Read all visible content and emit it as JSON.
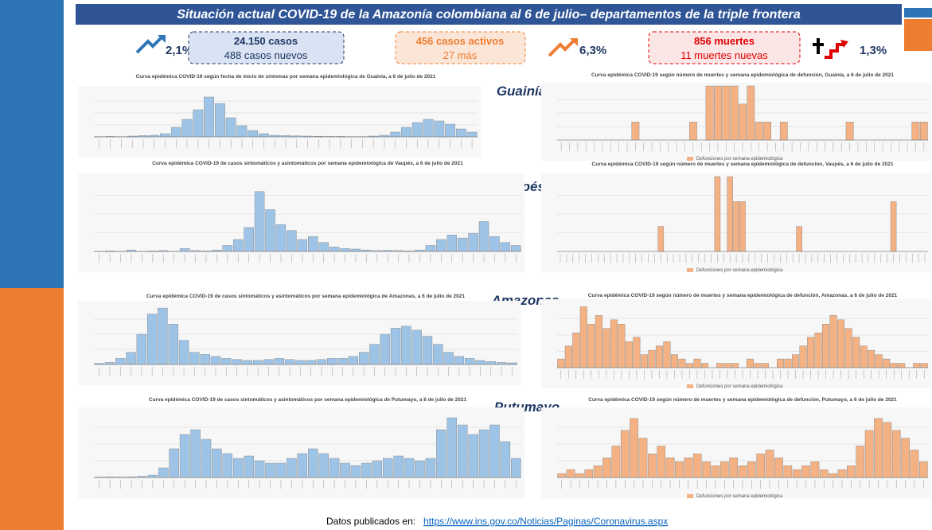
{
  "header": {
    "title": "Situación actual COVID-19 de la Amazonía colombiana al 6 de julio– departamentos de la triple frontera"
  },
  "stats": {
    "cases_change": "2,1%",
    "cases": "24.150 casos",
    "new_cases": "488 casos nuevos",
    "active_cases": "456 casos activos",
    "active_more": "27 más",
    "active_change": "6,3%",
    "deaths": "856 muertes",
    "new_deaths": "11 muertes nuevas",
    "deaths_change": "1,3%"
  },
  "departments": [
    "Guainía",
    "Vaupés",
    "Amazonas",
    "Putumayo"
  ],
  "chart_data": [
    {
      "type": "bar",
      "title": "Curva epidémica COVID-19 según fecha de inicio de síntomas por semana epidemiológica de Guainía, a 6 de julio de 2021",
      "ylim": [
        0,
        300
      ],
      "color": "#9dc3e6",
      "values": [
        2,
        3,
        2,
        5,
        8,
        10,
        20,
        60,
        110,
        170,
        250,
        210,
        120,
        70,
        40,
        20,
        10,
        8,
        6,
        5,
        4,
        3,
        3,
        2,
        2,
        5,
        10,
        30,
        60,
        90,
        110,
        100,
        80,
        50,
        30
      ]
    },
    {
      "type": "bar",
      "title": "Curva epidémica COVID-19 según número de muertes y semana epidemiológica de defunción, Guainía, a 6 de julio de 2021",
      "ylim": [
        0,
        3
      ],
      "series": [
        {
          "name": "Defunciones por semana epidemiológica",
          "color": "#f4b183",
          "values": [
            0,
            0,
            0,
            0,
            0,
            0,
            0,
            0,
            0,
            1,
            0,
            0,
            0,
            0,
            0,
            0,
            1,
            0,
            3,
            3,
            3,
            3,
            2,
            3,
            1,
            1,
            0,
            1,
            0,
            0,
            0,
            0,
            0,
            0,
            0,
            1,
            0,
            0,
            0,
            0,
            0,
            0,
            0,
            1,
            1
          ]
        }
      ]
    },
    {
      "type": "bar",
      "title": "Curva epidémica COVID-19 de casos sintomáticos y asintomáticos por semana epidemiológica de Vaupés, a 6 de julio de 2021",
      "ylim": [
        0,
        250
      ],
      "color": "#9dc3e6",
      "values": [
        1,
        2,
        1,
        5,
        1,
        2,
        3,
        1,
        10,
        3,
        2,
        5,
        20,
        40,
        80,
        200,
        140,
        90,
        70,
        40,
        50,
        30,
        15,
        10,
        8,
        5,
        3,
        4,
        3,
        2,
        5,
        20,
        40,
        55,
        45,
        60,
        100,
        50,
        30,
        20
      ]
    },
    {
      "type": "bar",
      "title": "Curva epidémica COVID-19 según número de muertes y semana epidemiológica de defunción, Vaupés, a 6 de julio de 2021",
      "ylim": [
        0,
        3
      ],
      "series": [
        {
          "name": "Defunciones por semana epidemiológica",
          "color": "#f4b183",
          "values": [
            0,
            0,
            0,
            0,
            0,
            0,
            0,
            0,
            0,
            0,
            0,
            0,
            0,
            0,
            0,
            0,
            1,
            0,
            0,
            0,
            0,
            0,
            0,
            0,
            0,
            3,
            0,
            3,
            2,
            2,
            0,
            0,
            0,
            0,
            0,
            0,
            0,
            0,
            1,
            0,
            0,
            0,
            0,
            0,
            0,
            0,
            0,
            0,
            0,
            0,
            0,
            0,
            0,
            2,
            0,
            0,
            0,
            0,
            0
          ]
        }
      ]
    },
    {
      "type": "bar",
      "title": "Curva epidémica COVID-19 de casos sintomáticos y asintomáticos por semana epidemiológica de Amazonas, a 6 de julio de 2021",
      "ylim": [
        0,
        300
      ],
      "color": "#9dc3e6",
      "values": [
        5,
        10,
        30,
        60,
        150,
        250,
        280,
        200,
        120,
        60,
        50,
        40,
        30,
        25,
        20,
        20,
        25,
        30,
        25,
        20,
        20,
        25,
        30,
        30,
        40,
        60,
        100,
        150,
        180,
        190,
        170,
        140,
        100,
        60,
        40,
        30,
        20,
        15,
        10,
        8
      ]
    },
    {
      "type": "bar",
      "title": "Curva epidémica COVID-19 según número de muertes y semana epidemiológica de defunción, Amazonas, a 6 de julio de 2021",
      "ylim": [
        0,
        15
      ],
      "series": [
        {
          "name": "Defunciones por semana epidemiológica",
          "color": "#f4b183",
          "values": [
            2,
            5,
            8,
            14,
            10,
            12,
            9,
            11,
            10,
            6,
            7,
            3,
            4,
            5,
            6,
            3,
            2,
            1,
            2,
            1,
            0,
            1,
            1,
            1,
            0,
            2,
            1,
            1,
            0,
            2,
            2,
            3,
            5,
            7,
            8,
            10,
            12,
            11,
            9,
            7,
            5,
            4,
            3,
            2,
            1,
            1,
            0,
            1,
            1
          ]
        }
      ]
    },
    {
      "type": "bar",
      "title": "Curva epidémica COVID-19 de casos sintomáticos y asintomáticos por semana epidemiológica de Putumayo, a 6 de julio de 2021",
      "ylim": [
        0,
        280
      ],
      "color": "#9dc3e6",
      "values": [
        2,
        3,
        2,
        3,
        5,
        10,
        40,
        120,
        180,
        200,
        160,
        120,
        100,
        80,
        90,
        70,
        60,
        60,
        80,
        100,
        120,
        100,
        80,
        60,
        50,
        60,
        70,
        80,
        90,
        80,
        70,
        80,
        200,
        250,
        220,
        180,
        200,
        220,
        150,
        80
      ]
    },
    {
      "type": "bar",
      "title": "Curva epidémica COVID-19 según número de muertes y semana epidemiológica de defunción, Putumayo, a 6 de julio de 2021",
      "ylim": [
        0,
        17
      ],
      "series": [
        {
          "name": "Defunciones por semana epidemiológica",
          "color": "#f4b183",
          "values": [
            1,
            2,
            1,
            2,
            3,
            5,
            8,
            12,
            15,
            10,
            6,
            8,
            5,
            4,
            5,
            6,
            4,
            3,
            4,
            5,
            3,
            4,
            6,
            7,
            5,
            3,
            2,
            3,
            4,
            2,
            1,
            2,
            3,
            8,
            12,
            15,
            14,
            12,
            10,
            7,
            4
          ]
        }
      ]
    }
  ],
  "footer": {
    "prefix": "Datos publicados en:",
    "link": "https://www.ins.gov.co/Noticias/Paginas/Coronavirus.aspx"
  }
}
